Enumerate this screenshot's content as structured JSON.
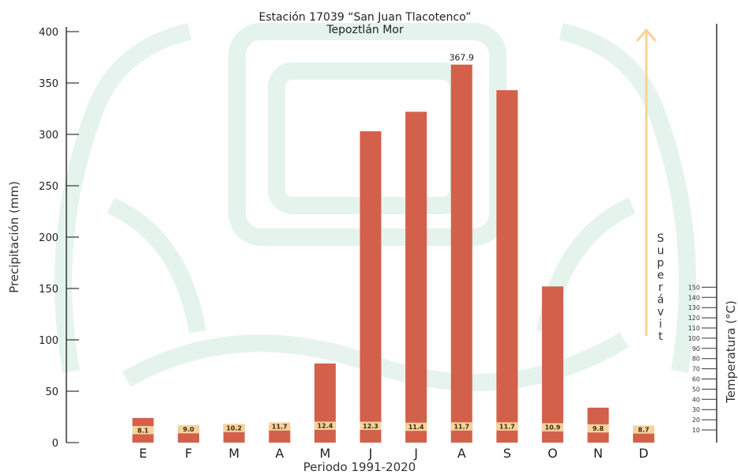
{
  "chart_data": {
    "type": "bar",
    "title": "Estación 17039 “San Juan Tlacotenco”",
    "subtitle": "Tepoztlán Mor",
    "xlabel": "Periodo 1991-2020",
    "ylabel": "Precipitación (mm)",
    "y2label": "Temperatura (°C)",
    "ylim": [
      0,
      400
    ],
    "yticks": [
      "0",
      "50",
      "100",
      "150",
      "200",
      "250",
      "300",
      "350",
      "400"
    ],
    "y2ticks": [
      "10",
      "20",
      "30",
      "40",
      "50",
      "60",
      "70",
      "80",
      "90",
      "100",
      "110",
      "120",
      "130",
      "140",
      "150"
    ],
    "categories": [
      "E",
      "F",
      "M",
      "A",
      "M",
      "J",
      "J",
      "A",
      "S",
      "O",
      "N",
      "D"
    ],
    "series": [
      {
        "values": [
          24,
          16,
          18,
          17,
          77,
          303,
          322,
          367.9,
          343,
          152,
          34,
          12
        ],
        "color": "#d2604a"
      },
      {
        "values": [
          8.1,
          9.0,
          10.2,
          11.7,
          12.4,
          12.3,
          11.4,
          11.7,
          11.7,
          10.9,
          9.8,
          8.7
        ],
        "color": "#f6d39a"
      }
    ],
    "temperature_labels": [
      "8.1",
      "9.0",
      "10.2",
      "11.7",
      "12.4",
      "12.3",
      "11.4",
      "11.7",
      "11.7",
      "10.9",
      "9.8",
      "8.7"
    ],
    "annotations": [
      {
        "text": "367.9",
        "category": "A"
      },
      {
        "text": "Superávit"
      }
    ],
    "grid": false,
    "legend": "none"
  }
}
